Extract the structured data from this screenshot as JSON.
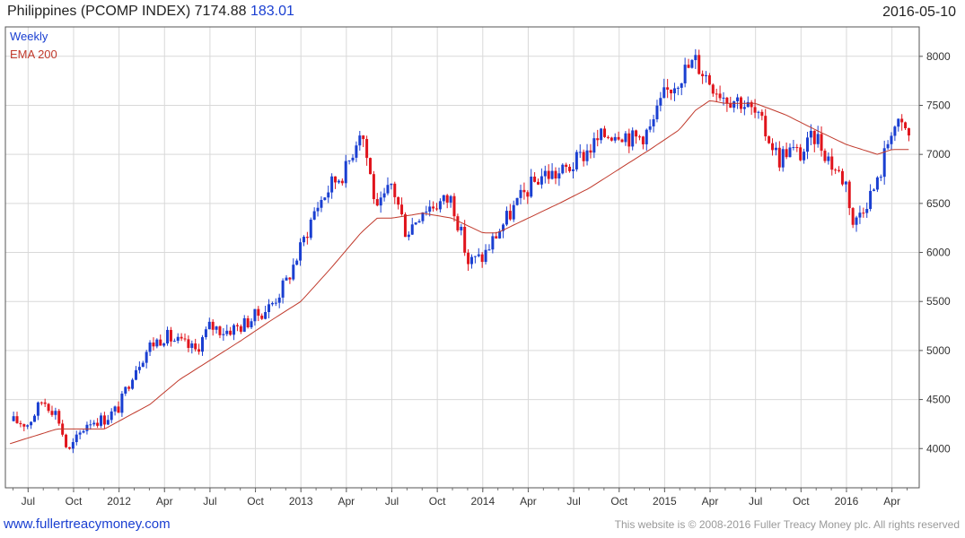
{
  "header": {
    "title": "Philippines (PCOMP INDEX) 7174.88",
    "change": "183.01",
    "date": "2016-05-10"
  },
  "footer": {
    "site": "www.fullertreacymoney.com",
    "copyright": "This website is © 2008-2016 Fuller Treacy Money plc. All rights reserved"
  },
  "chart_data": {
    "type": "candlestick",
    "legend": [
      {
        "label": "Weekly",
        "color": "#1a3fd1"
      },
      {
        "label": "EMA 200",
        "color": "#c0392b"
      }
    ],
    "colors": {
      "up": "#1a3fd1",
      "down": "#e0141c",
      "ema": "#c0392b",
      "grid": "#d9d9d9"
    },
    "ylim": [
      3600,
      8300
    ],
    "yticks": [
      4000,
      4500,
      5000,
      5500,
      6000,
      6500,
      7000,
      7500,
      8000
    ],
    "xticks": [
      "Jul",
      "Oct",
      "2012",
      "Apr",
      "Jul",
      "Oct",
      "2013",
      "Apr",
      "Jul",
      "Oct",
      "2014",
      "Apr",
      "Jul",
      "Oct",
      "2015",
      "Apr",
      "Jul",
      "Oct",
      "2016",
      "Apr"
    ],
    "grid": true,
    "close_path": [
      [
        2011.42,
        4280
      ],
      [
        2011.5,
        4250
      ],
      [
        2011.58,
        4500
      ],
      [
        2011.66,
        4350
      ],
      [
        2011.72,
        3950
      ],
      [
        2011.75,
        4050
      ],
      [
        2011.83,
        4280
      ],
      [
        2011.92,
        4300
      ],
      [
        2012.0,
        4420
      ],
      [
        2012.08,
        4800
      ],
      [
        2012.17,
        5050
      ],
      [
        2012.25,
        5150
      ],
      [
        2012.33,
        5080
      ],
      [
        2012.42,
        5000
      ],
      [
        2012.5,
        5250
      ],
      [
        2012.58,
        5200
      ],
      [
        2012.67,
        5250
      ],
      [
        2012.75,
        5350
      ],
      [
        2012.83,
        5450
      ],
      [
        2012.92,
        5700
      ],
      [
        2013.0,
        6050
      ],
      [
        2013.08,
        6450
      ],
      [
        2013.17,
        6700
      ],
      [
        2013.25,
        6850
      ],
      [
        2013.33,
        7300
      ],
      [
        2013.38,
        6800
      ],
      [
        2013.42,
        6400
      ],
      [
        2013.5,
        6700
      ],
      [
        2013.58,
        6200
      ],
      [
        2013.67,
        6450
      ],
      [
        2013.75,
        6500
      ],
      [
        2013.83,
        6550
      ],
      [
        2013.92,
        5900
      ],
      [
        2014.0,
        5950
      ],
      [
        2014.08,
        6200
      ],
      [
        2014.17,
        6450
      ],
      [
        2014.25,
        6650
      ],
      [
        2014.33,
        6800
      ],
      [
        2014.42,
        6800
      ],
      [
        2014.5,
        6900
      ],
      [
        2014.58,
        7050
      ],
      [
        2014.67,
        7200
      ],
      [
        2014.75,
        7250
      ],
      [
        2014.83,
        7150
      ],
      [
        2014.92,
        7250
      ],
      [
        2015.0,
        7600
      ],
      [
        2015.08,
        7800
      ],
      [
        2015.17,
        7950
      ],
      [
        2015.25,
        7750
      ],
      [
        2015.33,
        7600
      ],
      [
        2015.42,
        7550
      ],
      [
        2015.5,
        7400
      ],
      [
        2015.58,
        7150
      ],
      [
        2015.63,
        6950
      ],
      [
        2015.67,
        7050
      ],
      [
        2015.75,
        7000
      ],
      [
        2015.83,
        7200
      ],
      [
        2015.92,
        6900
      ],
      [
        2016.0,
        6700
      ],
      [
        2016.04,
        6250
      ],
      [
        2016.08,
        6450
      ],
      [
        2016.17,
        6700
      ],
      [
        2016.25,
        7300
      ],
      [
        2016.33,
        7250
      ],
      [
        2016.36,
        7050
      ]
    ],
    "ema_200": [
      [
        2011.4,
        4050
      ],
      [
        2011.66,
        4200
      ],
      [
        2011.75,
        4200
      ],
      [
        2011.92,
        4200
      ],
      [
        2012.0,
        4280
      ],
      [
        2012.17,
        4450
      ],
      [
        2012.33,
        4700
      ],
      [
        2012.5,
        4900
      ],
      [
        2012.67,
        5100
      ],
      [
        2012.83,
        5300
      ],
      [
        2013.0,
        5500
      ],
      [
        2013.17,
        5850
      ],
      [
        2013.33,
        6200
      ],
      [
        2013.42,
        6350
      ],
      [
        2013.5,
        6350
      ],
      [
        2013.67,
        6400
      ],
      [
        2013.83,
        6350
      ],
      [
        2014.0,
        6200
      ],
      [
        2014.08,
        6200
      ],
      [
        2014.25,
        6350
      ],
      [
        2014.42,
        6500
      ],
      [
        2014.58,
        6650
      ],
      [
        2014.75,
        6850
      ],
      [
        2014.92,
        7050
      ],
      [
        2015.08,
        7250
      ],
      [
        2015.17,
        7450
      ],
      [
        2015.25,
        7550
      ],
      [
        2015.33,
        7520
      ],
      [
        2015.5,
        7520
      ],
      [
        2015.67,
        7400
      ],
      [
        2015.83,
        7250
      ],
      [
        2016.0,
        7100
      ],
      [
        2016.17,
        7000
      ],
      [
        2016.25,
        7050
      ],
      [
        2016.36,
        7050
      ]
    ]
  }
}
